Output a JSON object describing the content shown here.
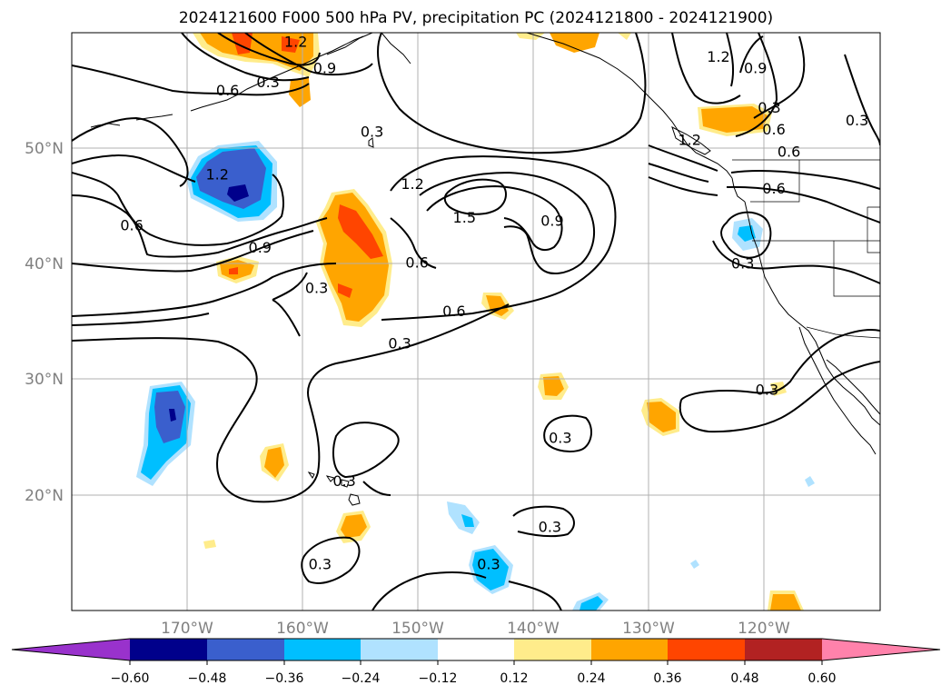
{
  "title": "2024121600 F000 500 hPa PV, precipitation PC (2024121800 - 2024121900)",
  "axes": {
    "lon_labels": [
      "170°W",
      "160°W",
      "150°W",
      "140°W",
      "130°W",
      "120°W"
    ],
    "lat_labels": [
      "50°N",
      "40°N",
      "30°N",
      "20°N"
    ],
    "lon_values": [
      -170,
      -160,
      -150,
      -140,
      -130,
      -120
    ],
    "lat_values": [
      50,
      40,
      30,
      20
    ],
    "lon_range": [
      -180,
      -110
    ],
    "lat_range": [
      10,
      60
    ],
    "grid": true
  },
  "colorbar": {
    "colors": [
      "#9932cc",
      "#00008b",
      "#3a5fcd",
      "#00bfff",
      "#b0e2ff",
      "#ffffff",
      "#ffec8b",
      "#ffa500",
      "#ff4500",
      "#b22222",
      "#ff82ab"
    ],
    "labels": [
      "−0.60",
      "−0.48",
      "−0.36",
      "−0.24",
      "−0.12",
      "0.12",
      "0.24",
      "0.36",
      "0.48",
      "0.60"
    ],
    "levels": [
      -0.6,
      -0.48,
      -0.36,
      -0.24,
      -0.12,
      0.12,
      0.24,
      0.36,
      0.48,
      0.6
    ],
    "extend": "both"
  },
  "contour_labels": [
    {
      "text": "0.6",
      "lon": -166.5,
      "lat": 54.9
    },
    {
      "text": "0.3",
      "lon": -163.0,
      "lat": 55.6
    },
    {
      "text": "1.2",
      "lon": -160.6,
      "lat": 59.1
    },
    {
      "text": "0.9",
      "lon": -158.1,
      "lat": 56.8
    },
    {
      "text": "1.2",
      "lon": -167.4,
      "lat": 47.6
    },
    {
      "text": "0.6",
      "lon": -174.8,
      "lat": 43.2
    },
    {
      "text": "0.9",
      "lon": -163.7,
      "lat": 41.3
    },
    {
      "text": "0.3",
      "lon": -158.8,
      "lat": 37.8
    },
    {
      "text": "0.3",
      "lon": -154.0,
      "lat": 51.3
    },
    {
      "text": "1.2",
      "lon": -150.5,
      "lat": 46.8
    },
    {
      "text": "1.5",
      "lon": -146.0,
      "lat": 43.9
    },
    {
      "text": "0.9",
      "lon": -138.4,
      "lat": 43.6
    },
    {
      "text": "0.6",
      "lon": -150.1,
      "lat": 40.0
    },
    {
      "text": "0.6",
      "lon": -146.9,
      "lat": 35.8
    },
    {
      "text": "0.3",
      "lon": -151.6,
      "lat": 33.0
    },
    {
      "text": "0.3",
      "lon": -137.7,
      "lat": 24.8
    },
    {
      "text": "0.3",
      "lon": -156.4,
      "lat": 21.1
    },
    {
      "text": "0.3",
      "lon": -138.6,
      "lat": 17.1
    },
    {
      "text": "0.3",
      "lon": -158.5,
      "lat": 13.9
    },
    {
      "text": "0.3",
      "lon": -143.9,
      "lat": 13.9
    },
    {
      "text": "1.2",
      "lon": -124.0,
      "lat": 57.8
    },
    {
      "text": "0.9",
      "lon": -120.8,
      "lat": 56.8
    },
    {
      "text": "0.3",
      "lon": -119.6,
      "lat": 53.4
    },
    {
      "text": "0.6",
      "lon": -119.2,
      "lat": 51.5
    },
    {
      "text": "1.2",
      "lon": -126.5,
      "lat": 50.6
    },
    {
      "text": "0.6",
      "lon": -117.9,
      "lat": 49.6
    },
    {
      "text": "0.6",
      "lon": -119.2,
      "lat": 46.4
    },
    {
      "text": "0.3",
      "lon": -112.0,
      "lat": 52.3
    },
    {
      "text": "0.3",
      "lon": -121.9,
      "lat": 39.9
    },
    {
      "text": "0.3",
      "lon": -119.8,
      "lat": 29.0
    }
  ]
}
